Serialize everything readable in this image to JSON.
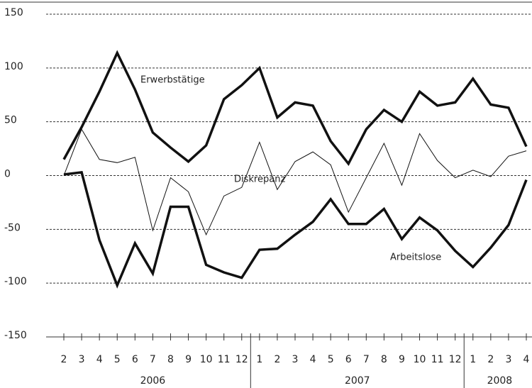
{
  "chart_data": {
    "type": "line",
    "categories": [
      "2",
      "3",
      "4",
      "5",
      "6",
      "7",
      "8",
      "9",
      "10",
      "11",
      "12",
      "1",
      "2",
      "3",
      "4",
      "5",
      "6",
      "7",
      "8",
      "9",
      "10",
      "11",
      "12",
      "1",
      "2",
      "3",
      "4"
    ],
    "category_groups": [
      {
        "label": "2006",
        "size": 11
      },
      {
        "label": "2007",
        "size": 12
      },
      {
        "label": "2008",
        "size": 4
      }
    ],
    "series": [
      {
        "name": "Erwerbstätige",
        "color": "#111111",
        "width": 3.5,
        "values": [
          15,
          45,
          78,
          114,
          80,
          40,
          26,
          13,
          28,
          71,
          84,
          100,
          54,
          68,
          65,
          32,
          11,
          43,
          61,
          50,
          78,
          65,
          68,
          90,
          66,
          63,
          27
        ]
      },
      {
        "name": "Diskrepanz",
        "color": "#111111",
        "width": 1,
        "values": [
          0,
          43,
          15,
          12,
          17,
          -51,
          -2,
          -15,
          -55,
          -19,
          -11,
          31,
          -13,
          13,
          22,
          10,
          -34,
          -2,
          30,
          -9,
          39,
          14,
          -2,
          5,
          -1,
          18,
          23
        ]
      },
      {
        "name": "Arbeitslose",
        "color": "#111111",
        "width": 3.5,
        "values": [
          1,
          3,
          -60,
          -102,
          -63,
          -91,
          -29,
          -29,
          -83,
          -90,
          -95,
          -69,
          -68,
          -55,
          -43,
          -22,
          -45,
          -45,
          -31,
          -59,
          -39,
          -51,
          -70,
          -85,
          -67,
          -46,
          -4
        ]
      }
    ],
    "ylim": [
      -150,
      150
    ],
    "yticks": [
      -150,
      -100,
      -50,
      0,
      50,
      100,
      150
    ],
    "grid": true
  }
}
